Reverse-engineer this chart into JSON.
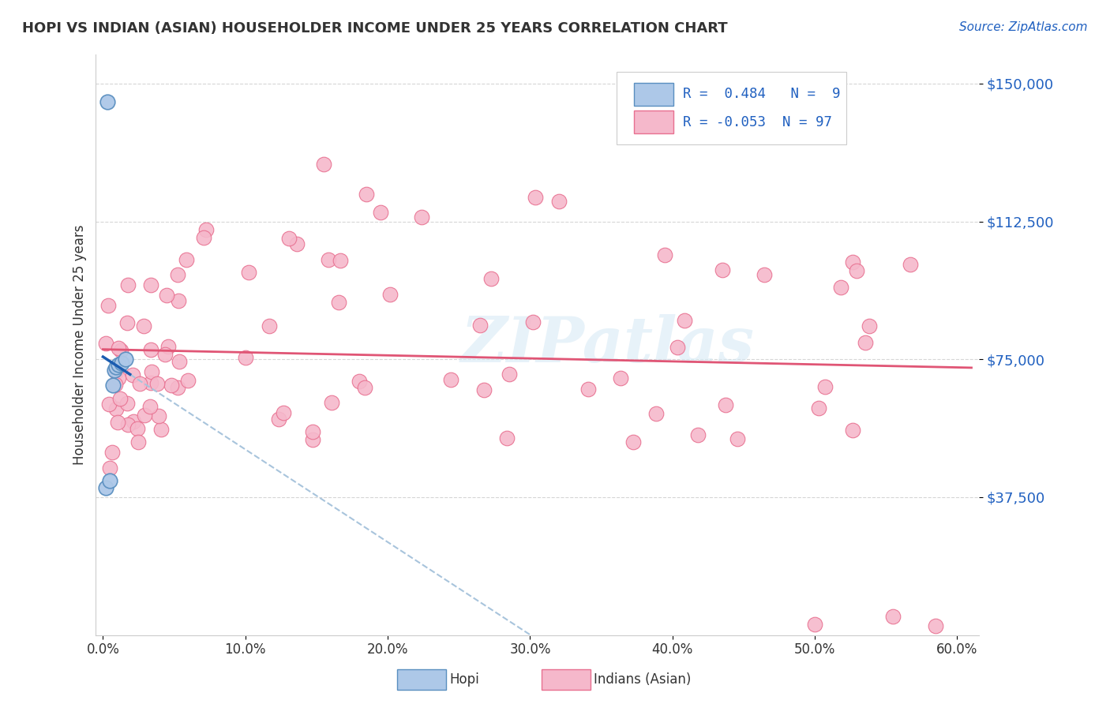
{
  "title": "HOPI VS INDIAN (ASIAN) HOUSEHOLDER INCOME UNDER 25 YEARS CORRELATION CHART",
  "source": "Source: ZipAtlas.com",
  "ylabel": "Householder Income Under 25 years",
  "xlim": [
    -0.005,
    0.615
  ],
  "ylim": [
    0,
    158000
  ],
  "yticks": [
    37500,
    75000,
    112500,
    150000
  ],
  "ytick_labels": [
    "$37,500",
    "$75,000",
    "$112,500",
    "$150,000"
  ],
  "xticks": [
    0.0,
    0.1,
    0.2,
    0.3,
    0.4,
    0.5,
    0.6
  ],
  "xtick_labels": [
    "0.0%",
    "10.0%",
    "20.0%",
    "30.0%",
    "40.0%",
    "50.0%",
    "60.0%"
  ],
  "hopi_R": 0.484,
  "hopi_N": 9,
  "indian_R": -0.053,
  "indian_N": 97,
  "hopi_color": "#adc8e8",
  "indian_color": "#f5b8cb",
  "hopi_edge_color": "#5a8fc0",
  "indian_edge_color": "#e87090",
  "hopi_line_color": "#1a5cb0",
  "indian_line_color": "#e05575",
  "dash_color": "#a8c4dc",
  "watermark": "ZIPatlas",
  "background_color": "#ffffff",
  "grid_color": "#cccccc"
}
